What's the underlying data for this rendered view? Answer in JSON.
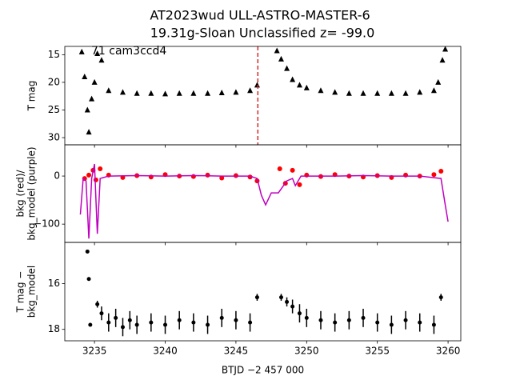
{
  "chart_data": [
    {
      "type": "scatter",
      "title": "AT2023wud  ULL-ASTRO-MASTER-6",
      "subtitle": "19.31g-Sloan Unclassified z= -99.0",
      "annotation": "71 cam3ccd4",
      "ylabel": [
        "T mag"
      ],
      "xlim": [
        3232.9,
        3260.9
      ],
      "ylim": [
        31.3,
        13.5
      ],
      "xticks": [
        3235,
        3240,
        3245,
        3250,
        3255,
        3260
      ],
      "yticks": [
        15,
        20,
        25,
        30
      ],
      "vline": 3246.55,
      "vline_color": "#d62728",
      "series": [
        {
          "marker": "triangle",
          "color": "#000000",
          "x": [
            3234.1,
            3234.3,
            3234.5,
            3234.6,
            3234.8,
            3235.0,
            3235.2,
            3235.5,
            3236,
            3237,
            3238,
            3239,
            3240,
            3241,
            3242,
            3243,
            3244,
            3245,
            3246,
            3246.5,
            3247.9,
            3248.2,
            3248.6,
            3249,
            3249.5,
            3250,
            3251,
            3252,
            3253,
            3254,
            3255,
            3256,
            3257,
            3258,
            3259,
            3259.3,
            3259.6,
            3259.8
          ],
          "values": [
            14.5,
            19,
            25,
            29,
            23,
            20,
            14.8,
            16,
            21.5,
            21.8,
            22,
            22,
            22.1,
            22,
            22,
            22,
            21.9,
            21.8,
            21.5,
            20.5,
            14.3,
            15.8,
            17.5,
            19.5,
            20.5,
            21,
            21.5,
            21.8,
            22,
            22,
            22,
            22,
            22,
            21.8,
            21.5,
            20,
            16,
            14.0
          ]
        }
      ]
    },
    {
      "type": "scatter",
      "ylabel": [
        "bkg (red)/",
        "bkg_model (purple)"
      ],
      "xlim": [
        3232.9,
        3260.9
      ],
      "ylim": [
        -138,
        65
      ],
      "xticks": [
        3235,
        3240,
        3245,
        3250,
        3255,
        3260
      ],
      "yticks": [
        0,
        {
          "value": -100,
          "label": "−100"
        }
      ],
      "series": [
        {
          "marker": "circle",
          "color": "#ff0000",
          "x": [
            3234.3,
            3234.6,
            3234.9,
            3235.1,
            3235.4,
            3236,
            3237,
            3238,
            3239,
            3240,
            3241,
            3242,
            3243,
            3244,
            3245,
            3246,
            3246.5,
            3248.1,
            3248.5,
            3249,
            3249.5,
            3250,
            3251,
            3252,
            3253,
            3254,
            3255,
            3256,
            3257,
            3258,
            3259,
            3259.5
          ],
          "values": [
            -5,
            2,
            12,
            -8,
            15,
            2,
            -3,
            1,
            -2,
            3,
            0,
            -1,
            2,
            -4,
            1,
            -2,
            -10,
            15,
            -15,
            12,
            -18,
            2,
            -1,
            3,
            0,
            -2,
            1,
            -3,
            2,
            0,
            3,
            10
          ]
        },
        {
          "marker": "line",
          "color": "#bf00bf",
          "x": [
            3234.0,
            3234.2,
            3234.4,
            3234.6,
            3234.8,
            3235.0,
            3235.2,
            3235.4,
            3236,
            3238,
            3240,
            3242,
            3244,
            3246,
            3246.5,
            3246.8,
            3247.1,
            3247.5,
            3248,
            3248.6,
            3249,
            3249.2,
            3249.6,
            3250,
            3252,
            3254,
            3256,
            3258,
            3259.5,
            3259.8,
            3260.0
          ],
          "values": [
            -80,
            -5,
            -10,
            -130,
            -5,
            25,
            -120,
            -5,
            0,
            1,
            0,
            1,
            0,
            0,
            -5,
            -40,
            -60,
            -35,
            -35,
            -10,
            -5,
            -20,
            0,
            0,
            0,
            1,
            0,
            0,
            -5,
            -60,
            -95
          ]
        }
      ]
    },
    {
      "type": "scatter",
      "ylabel": [
        "T mag −",
        "bkg_model"
      ],
      "xlabel": "BTJD −2 457 000",
      "xlim": [
        3232.9,
        3260.9
      ],
      "ylim": [
        18.5,
        14.2
      ],
      "xticks": [
        3235,
        3240,
        3245,
        3250,
        3255,
        3260
      ],
      "yticks": [
        16,
        18
      ],
      "series": [
        {
          "marker": "errorbar",
          "color": "#000000",
          "x": [
            3234.5,
            3234.6,
            3234.7,
            3235.2,
            3235.5,
            3236,
            3236.5,
            3237,
            3237.5,
            3238,
            3239,
            3240,
            3241,
            3242,
            3243,
            3244,
            3245,
            3246,
            3246.5,
            3248.2,
            3248.6,
            3249,
            3249.5,
            3250,
            3251,
            3252,
            3253,
            3254,
            3255,
            3256,
            3257,
            3258,
            3259,
            3259.5
          ],
          "values": [
            14.6,
            15.8,
            17.8,
            16.9,
            17.3,
            17.7,
            17.5,
            17.9,
            17.6,
            17.8,
            17.7,
            17.8,
            17.6,
            17.7,
            17.8,
            17.5,
            17.6,
            17.7,
            16.6,
            16.6,
            16.8,
            17.0,
            17.3,
            17.5,
            17.6,
            17.7,
            17.6,
            17.5,
            17.7,
            17.8,
            17.6,
            17.7,
            17.8,
            16.6
          ],
          "errors": [
            0.05,
            0.05,
            0.05,
            0.15,
            0.3,
            0.4,
            0.4,
            0.4,
            0.4,
            0.4,
            0.4,
            0.4,
            0.4,
            0.4,
            0.4,
            0.4,
            0.4,
            0.4,
            0.15,
            0.15,
            0.2,
            0.3,
            0.4,
            0.4,
            0.4,
            0.4,
            0.4,
            0.4,
            0.4,
            0.4,
            0.4,
            0.4,
            0.4,
            0.15
          ]
        }
      ]
    }
  ]
}
